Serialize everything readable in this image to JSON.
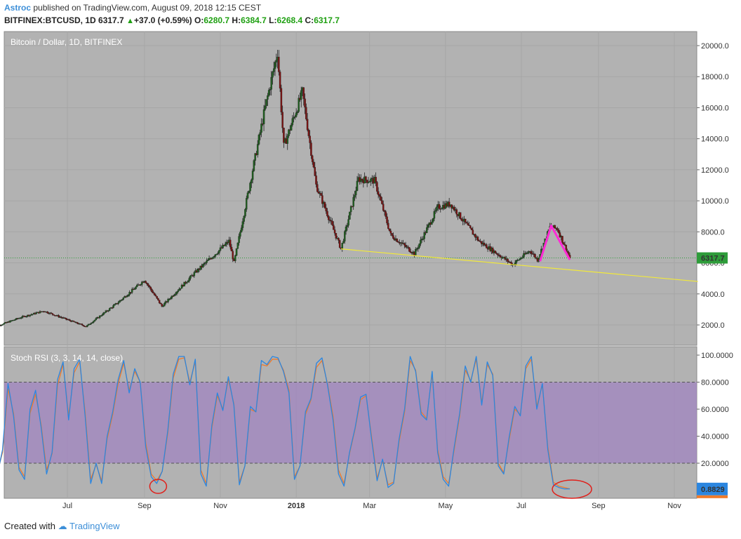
{
  "header": {
    "author": "Astroc",
    "published_text": "published on TradingView.com, August 09, 2018 12:15 CEST",
    "symbol": "BITFINEX:BTCUSD, 1D",
    "last": "6317.7",
    "change": "+37.0 (+0.59%)",
    "open_label": "O:",
    "open": "6280.7",
    "high_label": "H:",
    "high": "6384.7",
    "low_label": "L:",
    "low": "6268.4",
    "close_label": "C:",
    "close": "6317.7"
  },
  "footer": {
    "created_with": "Created with",
    "brand": "TradingView"
  },
  "colors": {
    "panel_bg": "#b2b2b2",
    "up_candle": "#1f5e1f",
    "down_candle": "#7a1212",
    "trendline": "#f2e93a",
    "pattern_line": "#ff2ad4",
    "rsi_band": "#a084c0",
    "stoch_k": "#2b86e0",
    "stoch_d": "#ee7a2a",
    "price_badge": "#2e9c3a",
    "stoch_badge": "#2b86e0",
    "stoch_badge2": "#ee7a2a",
    "circle": "#e0201b"
  },
  "chart_data": [
    {
      "type": "candlestick",
      "title": "Bitcoin / Dollar, 1D, BITFINEX",
      "y_ticks": [
        "20000.0",
        "18000.0",
        "16000.0",
        "14000.0",
        "12000.0",
        "10000.0",
        "8000.0",
        "6000.0",
        "4000.0",
        "2000.0"
      ],
      "ylim": [
        0,
        20700
      ],
      "x_ticks": [
        "Jul",
        "Sep",
        "Nov",
        "2018",
        "Mar",
        "May",
        "Jul",
        "Sep",
        "Nov"
      ],
      "x_tick_dates": [
        "2017-07-01",
        "2017-09-01",
        "2017-11-01",
        "2018-01-01",
        "2018-03-01",
        "2018-05-01",
        "2018-07-01",
        "2018-09-01",
        "2018-11-01"
      ],
      "last_price_label": "6317.7",
      "price_path": [
        [
          "2017-05-01",
          1800
        ],
        [
          "2017-05-25",
          2500
        ],
        [
          "2017-06-12",
          2900
        ],
        [
          "2017-07-16",
          1900
        ],
        [
          "2017-08-10",
          3400
        ],
        [
          "2017-09-01",
          4900
        ],
        [
          "2017-09-15",
          3200
        ],
        [
          "2017-10-12",
          5400
        ],
        [
          "2017-11-08",
          7400
        ],
        [
          "2017-11-12",
          6000
        ],
        [
          "2017-12-07",
          16000
        ],
        [
          "2017-12-17",
          19600
        ],
        [
          "2017-12-22",
          13500
        ],
        [
          "2018-01-06",
          17000
        ],
        [
          "2018-01-17",
          11000
        ],
        [
          "2018-02-06",
          6900
        ],
        [
          "2018-02-20",
          11400
        ],
        [
          "2018-03-05",
          11300
        ],
        [
          "2018-03-18",
          7800
        ],
        [
          "2018-04-06",
          6600
        ],
        [
          "2018-04-25",
          9600
        ],
        [
          "2018-05-05",
          9800
        ],
        [
          "2018-05-28",
          7400
        ],
        [
          "2018-06-24",
          5900
        ],
        [
          "2018-07-08",
          6800
        ],
        [
          "2018-07-14",
          6200
        ],
        [
          "2018-07-24",
          8300
        ],
        [
          "2018-07-30",
          8200
        ],
        [
          "2018-08-09",
          6318
        ]
      ],
      "trendline": {
        "from": [
          "2018-02-06",
          6900
        ],
        "to": [
          "2018-11-20",
          4800
        ]
      },
      "pattern": [
        [
          "2018-07-16",
          6100
        ],
        [
          "2018-07-25",
          8400
        ],
        [
          "2018-08-09",
          6200
        ]
      ]
    },
    {
      "type": "line",
      "title": "Stoch RSI (3, 3, 14, 14, close)",
      "y_ticks": [
        "100.0000",
        "80.0000",
        "60.0000",
        "40.0000",
        "20.0000"
      ],
      "ylim": [
        -4,
        102
      ],
      "upper_band": 80,
      "lower_band": 20,
      "last_value_k": "0.8829",
      "series": [
        {
          "values": [
            42,
            10,
            30,
            79,
            55,
            15,
            8,
            60,
            74,
            47,
            12,
            28,
            82,
            95,
            52,
            90,
            97,
            55,
            5,
            20,
            5,
            40,
            58,
            82,
            96,
            72,
            90,
            80,
            32,
            10,
            5,
            14,
            44,
            86,
            99,
            99,
            78,
            97,
            12,
            3,
            48,
            72,
            59,
            84,
            63,
            4,
            18,
            62,
            58,
            96,
            93,
            99,
            98,
            88,
            72,
            8,
            18,
            58,
            68,
            94,
            98,
            78,
            52,
            12,
            3,
            28,
            46,
            69,
            71,
            38,
            7,
            23,
            2,
            5,
            38,
            60,
            99,
            88,
            56,
            52,
            88,
            28,
            8,
            3,
            32,
            57,
            92,
            80,
            99,
            63,
            95,
            85,
            18,
            12,
            40,
            62,
            55,
            92,
            99,
            60,
            79,
            30,
            4,
            2,
            1,
            1
          ]
        },
        {
          "values": [
            40,
            12,
            28,
            75,
            57,
            17,
            10,
            57,
            71,
            49,
            15,
            27,
            78,
            93,
            55,
            87,
            95,
            58,
            8,
            19,
            7,
            38,
            56,
            79,
            94,
            74,
            88,
            80,
            35,
            12,
            7,
            14,
            42,
            83,
            97,
            98,
            80,
            95,
            15,
            5,
            46,
            70,
            60,
            82,
            64,
            6,
            18,
            60,
            58,
            93,
            92,
            97,
            97,
            89,
            74,
            10,
            18,
            56,
            67,
            91,
            96,
            79,
            55,
            15,
            5,
            27,
            45,
            67,
            70,
            40,
            9,
            22,
            4,
            6,
            36,
            58,
            96,
            89,
            58,
            53,
            86,
            30,
            10,
            5,
            30,
            55,
            89,
            81,
            97,
            65,
            93,
            86,
            20,
            13,
            38,
            60,
            56,
            90,
            97,
            62,
            78,
            32,
            6,
            3,
            2,
            1
          ]
        }
      ]
    }
  ]
}
